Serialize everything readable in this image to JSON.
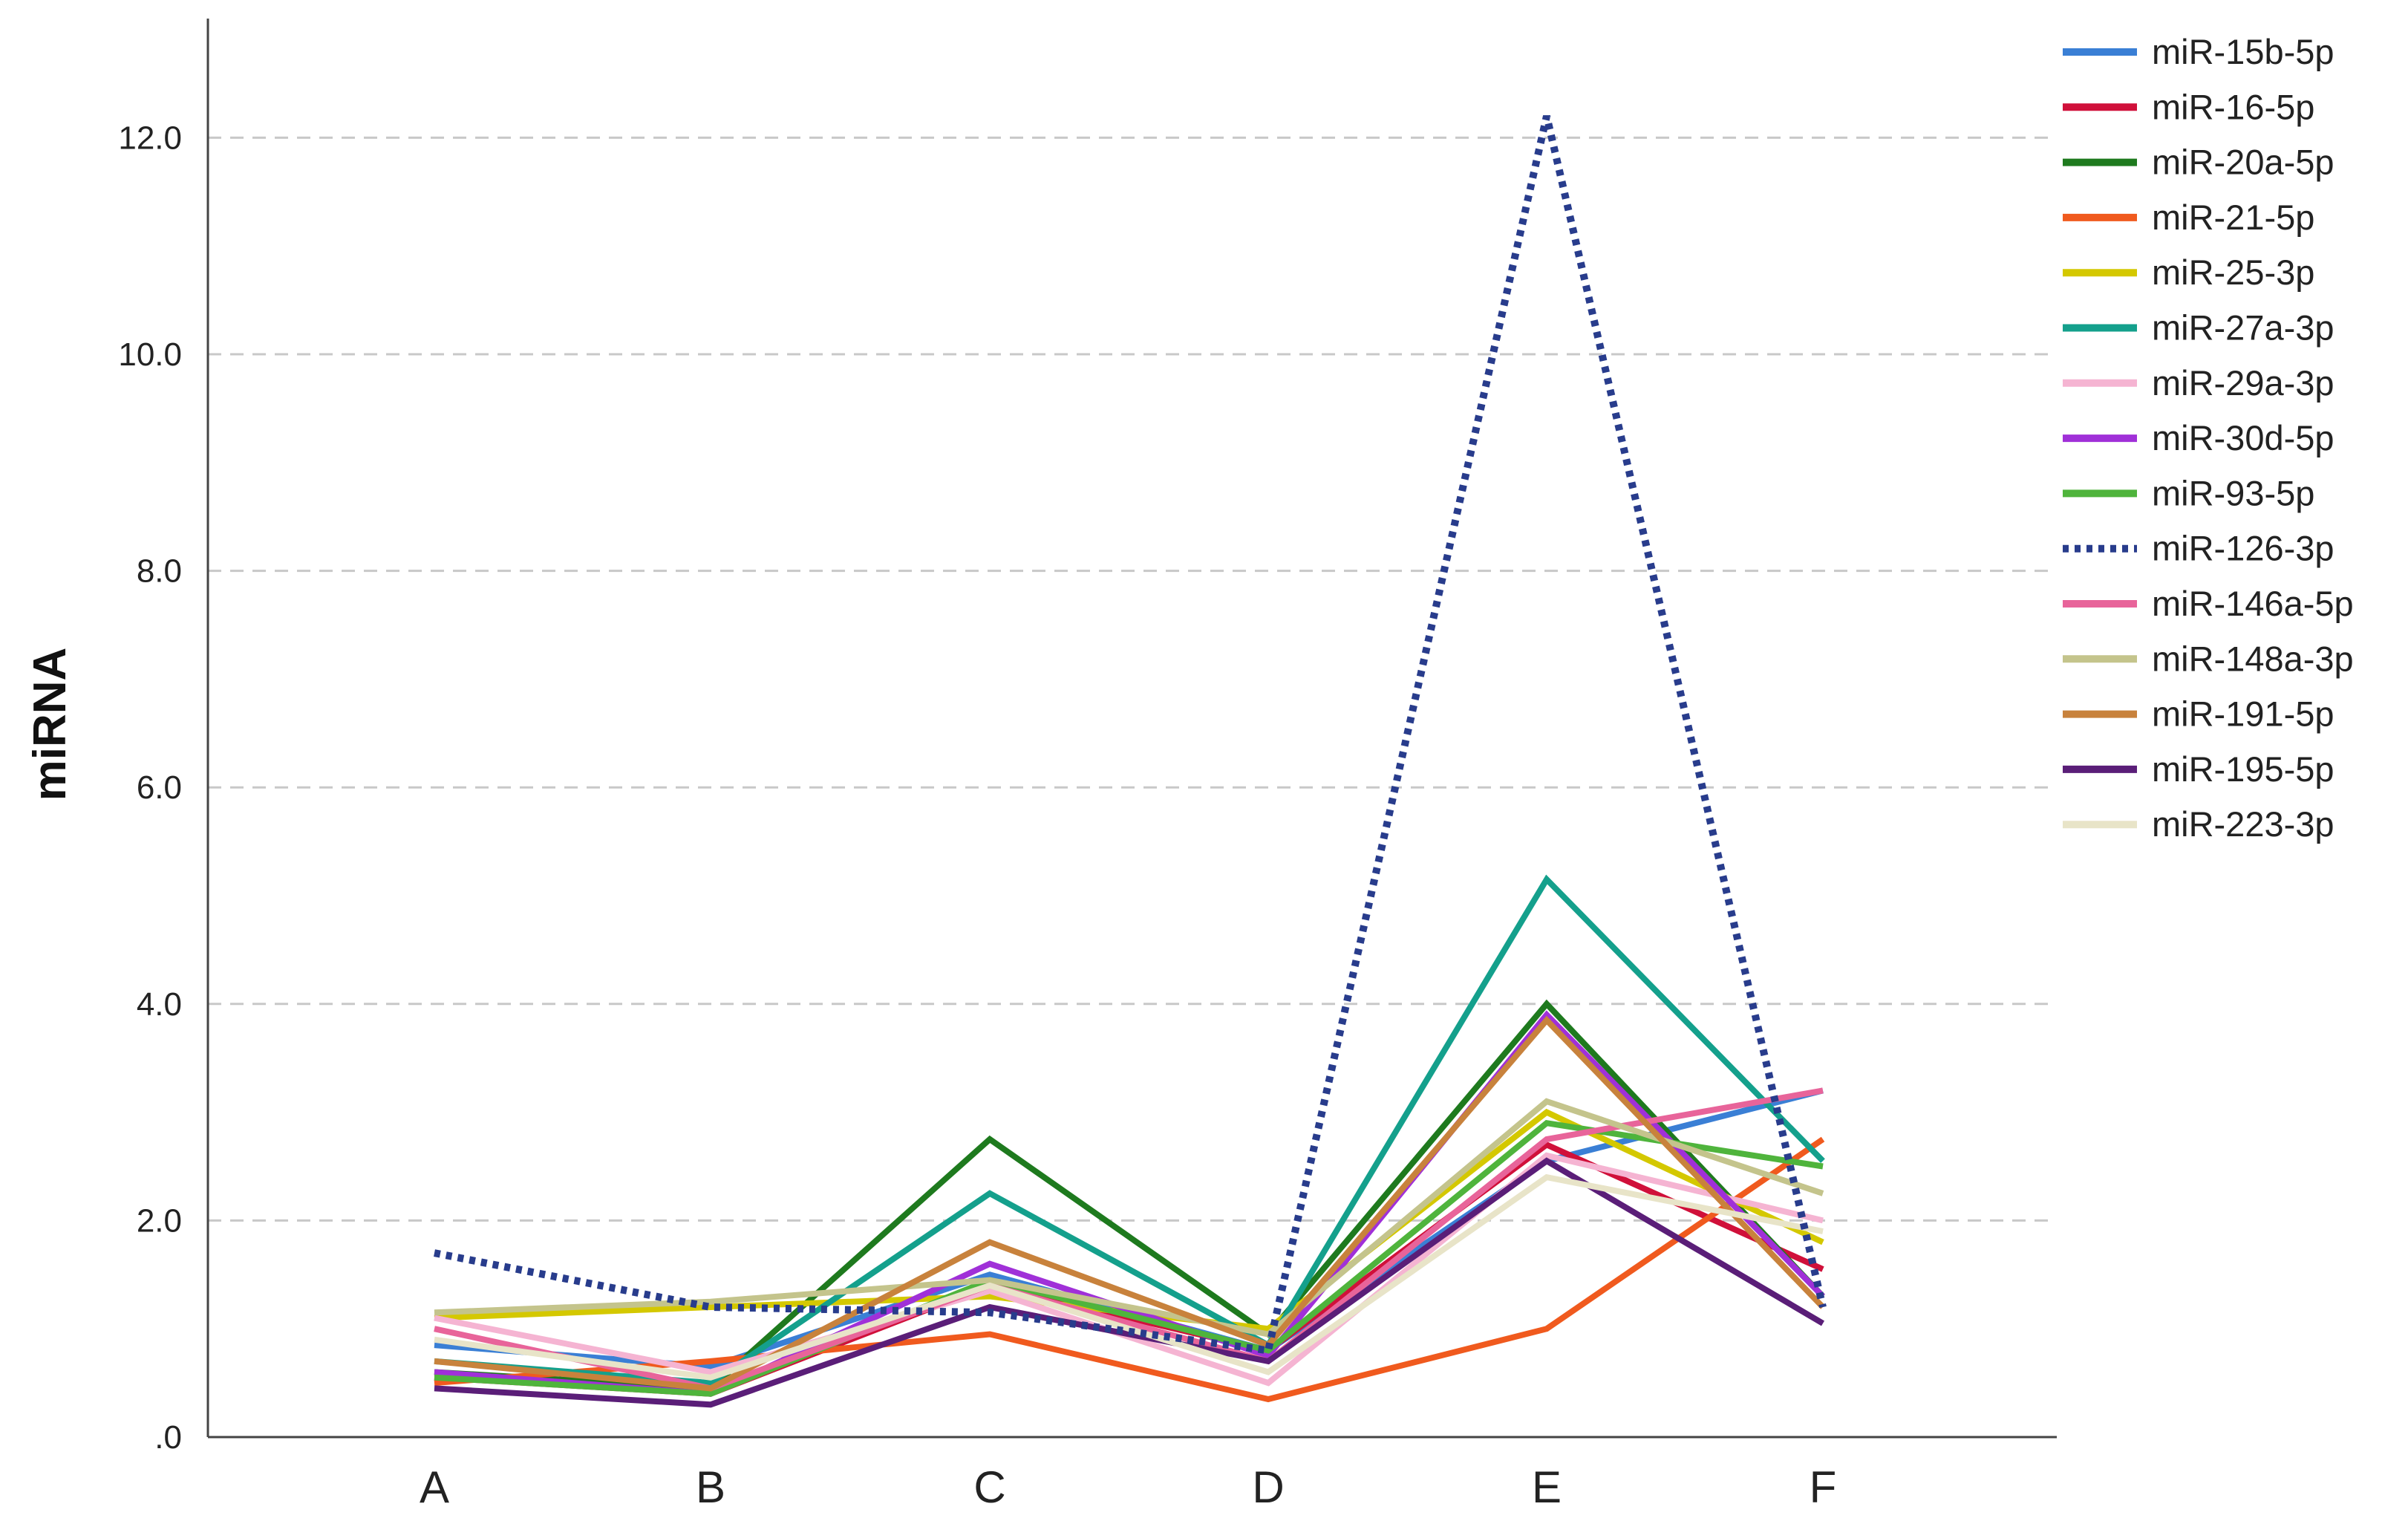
{
  "chart_data": {
    "type": "line",
    "title": "",
    "xlabel": "",
    "ylabel": "miRNA",
    "categories": [
      "A",
      "B",
      "C",
      "D",
      "E",
      "F"
    ],
    "ylim": [
      0,
      13.1
    ],
    "yticks": [
      {
        "value": 0,
        "label": ".0"
      },
      {
        "value": 2,
        "label": "2.0"
      },
      {
        "value": 4,
        "label": "4.0"
      },
      {
        "value": 6,
        "label": "6.0"
      },
      {
        "value": 8,
        "label": "8.0"
      },
      {
        "value": 10,
        "label": "10.0"
      },
      {
        "value": 12,
        "label": "12.0"
      }
    ],
    "grid": {
      "y": true,
      "style": "dashed",
      "color": "#c8c8c8"
    },
    "legend": {
      "position": "top-right"
    },
    "series": [
      {
        "name": "miR-15b-5p",
        "color": "#3a7fd5",
        "dash": false,
        "values": [
          0.85,
          0.65,
          1.5,
          0.8,
          2.55,
          3.2
        ]
      },
      {
        "name": "miR-16-5p",
        "color": "#d0103a",
        "dash": false,
        "values": [
          0.55,
          0.4,
          1.4,
          0.8,
          2.7,
          1.55
        ]
      },
      {
        "name": "miR-20a-5p",
        "color": "#1e7a1e",
        "dash": false,
        "values": [
          0.6,
          0.45,
          2.75,
          0.95,
          4.0,
          1.3
        ]
      },
      {
        "name": "miR-21-5p",
        "color": "#f05a1e",
        "dash": false,
        "values": [
          0.5,
          0.7,
          0.95,
          0.35,
          1.0,
          2.75
        ]
      },
      {
        "name": "miR-25-3p",
        "color": "#d4c800",
        "dash": false,
        "values": [
          1.1,
          1.2,
          1.3,
          1.0,
          3.0,
          1.8
        ]
      },
      {
        "name": "miR-27a-3p",
        "color": "#14a08c",
        "dash": false,
        "values": [
          0.7,
          0.5,
          2.25,
          0.85,
          5.15,
          2.55
        ]
      },
      {
        "name": "miR-29a-3p",
        "color": "#f5b4d2",
        "dash": false,
        "values": [
          1.1,
          0.6,
          1.35,
          0.5,
          2.6,
          2.0
        ]
      },
      {
        "name": "miR-30d-5p",
        "color": "#a030d8",
        "dash": false,
        "values": [
          0.6,
          0.4,
          1.6,
          0.75,
          3.9,
          1.3
        ]
      },
      {
        "name": "miR-93-5p",
        "color": "#4fb43c",
        "dash": false,
        "values": [
          0.55,
          0.4,
          1.45,
          0.8,
          2.9,
          2.5
        ]
      },
      {
        "name": "miR-126-3p",
        "color": "#283c8c",
        "dash": true,
        "values": [
          1.7,
          1.2,
          1.15,
          0.8,
          12.2,
          1.2
        ]
      },
      {
        "name": "miR-146a-5p",
        "color": "#e8649a",
        "dash": false,
        "values": [
          1.0,
          0.45,
          1.4,
          0.7,
          2.75,
          3.2
        ]
      },
      {
        "name": "miR-148a-3p",
        "color": "#c4c48c",
        "dash": false,
        "values": [
          1.15,
          1.25,
          1.45,
          0.95,
          3.1,
          2.25
        ]
      },
      {
        "name": "miR-191-5p",
        "color": "#c8823c",
        "dash": false,
        "values": [
          0.7,
          0.45,
          1.8,
          0.85,
          3.85,
          1.2
        ]
      },
      {
        "name": "miR-195-5p",
        "color": "#5a1e78",
        "dash": false,
        "values": [
          0.45,
          0.3,
          1.2,
          0.7,
          2.55,
          1.05
        ]
      },
      {
        "name": "miR-223-3p",
        "color": "#e8e4c8",
        "dash": false,
        "values": [
          0.9,
          0.55,
          1.4,
          0.6,
          2.4,
          1.9
        ]
      }
    ]
  }
}
